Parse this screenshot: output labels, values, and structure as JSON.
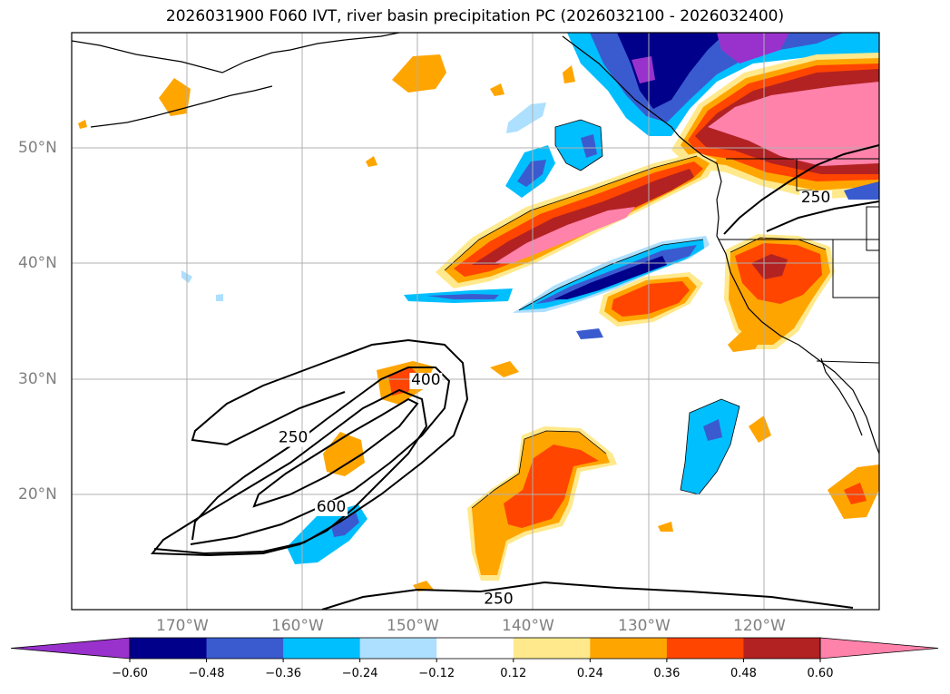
{
  "title": "2026031900 F060 IVT, river basin precipitation PC (2026032100 - 2026032400)",
  "map": {
    "lat_labels": [
      "50°N",
      "40°N",
      "30°N",
      "20°N"
    ],
    "lon_labels": [
      "170°W",
      "160°W",
      "150°W",
      "140°W",
      "130°W",
      "120°W"
    ],
    "lat_values": [
      50,
      40,
      30,
      20
    ],
    "lon_values": [
      -170,
      -160,
      -150,
      -140,
      -130,
      -120
    ],
    "extent": {
      "lon_min": -180,
      "lon_max": -110,
      "lat_min": 10,
      "lat_max": 60
    },
    "contour_labels": [
      {
        "text": "250",
        "lon": -160.8,
        "lat": 24.5
      },
      {
        "text": "400",
        "lon": -149.3,
        "lat": 29.5
      },
      {
        "text": "600",
        "lon": -157.5,
        "lat": 18.5
      },
      {
        "text": "250",
        "lon": -115.5,
        "lat": 45.3
      },
      {
        "text": "250",
        "lon": -143.0,
        "lat": 10.5
      }
    ]
  },
  "colorbar": {
    "colors": [
      "#9932CC",
      "#00008B",
      "#3A5BCF",
      "#00BFFF",
      "#ADDFFF",
      "#FFFFFF",
      "#FFE98C",
      "#FFA500",
      "#FF4500",
      "#B22222",
      "#FF82AB"
    ],
    "labels": [
      "−0.60",
      "−0.48",
      "−0.36",
      "−0.24",
      "−0.12",
      "0.12",
      "0.24",
      "0.36",
      "0.48",
      "0.60"
    ]
  }
}
